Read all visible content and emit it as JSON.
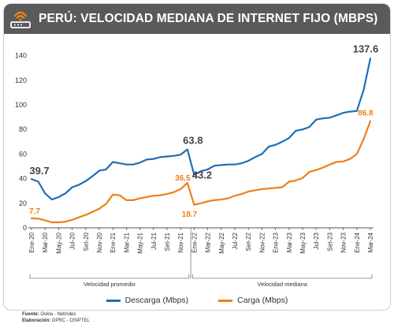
{
  "header": {
    "title": "PERÚ: VELOCIDAD MEDIANA DE INTERNET FIJO (MBPS)",
    "icon": "wifi-router-icon",
    "background": "#5a5a5a",
    "icon_color": "#f07f17"
  },
  "legend": [
    {
      "label": "Descarga (Mbps)",
      "color": "#1f6db5"
    },
    {
      "label": "Carga (Mbps)",
      "color": "#f07f17"
    }
  ],
  "footer": {
    "source_label": "Fuente:",
    "source": "Ookla - NetIndex",
    "prepared_label": "Elaboración:",
    "prepared": "DPRC - OSIPTEL"
  },
  "chart_data": {
    "type": "line",
    "title": "PERÚ: VELOCIDAD MEDIANA DE INTERNET FIJO (MBPS)",
    "ylim": [
      0,
      150
    ],
    "yticks": [
      0,
      20,
      40,
      60,
      80,
      100,
      120,
      140
    ],
    "grid": false,
    "legend_position": "bottom",
    "x": [
      "Ene-20",
      "Feb-20",
      "Mar-20",
      "Abr-20",
      "May-20",
      "Jun-20",
      "Jul-20",
      "Ago-20",
      "Set-20",
      "Oct-20",
      "Nov-20",
      "Dic-20",
      "Ene-21",
      "Feb-21",
      "Mar-21",
      "Abr-21",
      "May-21",
      "Jun-21",
      "Jul-21",
      "Ago-21",
      "Set-21",
      "Oct-21",
      "Nov-21",
      "Dic-21",
      "Ene-22",
      "Feb-22",
      "Mar-22",
      "Abr-22",
      "May-22",
      "Jun-22",
      "Jul-22",
      "Ago-22",
      "Set-22",
      "Oct-22",
      "Nov-22",
      "Dic-22",
      "Ene-23",
      "Feb-23",
      "Mar-23",
      "Abr-23",
      "May-23",
      "Jun-23",
      "Jul-23",
      "Ago-23",
      "Set-23",
      "Oct-23",
      "Nov-23",
      "Dic-23",
      "Ene-24",
      "Feb-24",
      "Mar-24"
    ],
    "xtick_labels": [
      "Ene-20",
      "Mar-20",
      "May-20",
      "Jul-20",
      "Set-20",
      "Nov-20",
      "Ene-21",
      "Mar-21",
      "May-21",
      "Jul-21",
      "Set-21",
      "Nov-21",
      "Ene-22",
      "Mar-22",
      "May-22",
      "Jul-22",
      "Set-22",
      "Nov-22",
      "Ene-23",
      "Mar-23",
      "May-23",
      "Jul-23",
      "Set-23",
      "Nov-23",
      "Ene-24",
      "Mar-24"
    ],
    "series": [
      {
        "name": "Descarga (Mbps)",
        "color": "#1f6db5",
        "values": [
          39.7,
          37.5,
          28,
          23,
          25,
          28,
          33,
          35,
          38,
          42,
          46.5,
          47.5,
          53.5,
          52.5,
          51.5,
          51.5,
          53,
          55.5,
          56,
          57.5,
          58,
          58.5,
          59.5,
          63.8,
          43.2,
          46,
          47.5,
          50.5,
          51,
          51.5,
          51.5,
          52.5,
          54.5,
          57.5,
          60,
          66,
          67.5,
          70,
          73,
          79,
          80,
          82,
          88,
          89,
          89.5,
          91.5,
          93.5,
          94.5,
          95,
          112,
          137.6
        ]
      },
      {
        "name": "Carga (Mbps)",
        "color": "#f07f17",
        "values": [
          7.7,
          7.5,
          6,
          4.5,
          4.5,
          5,
          6.5,
          8.5,
          10.5,
          13,
          15.5,
          19.5,
          27,
          26.5,
          22.5,
          22.5,
          24,
          25,
          26,
          26.5,
          27.5,
          29,
          31.5,
          36.5,
          18.7,
          20,
          21.5,
          22.5,
          23,
          24,
          26,
          27.5,
          29.5,
          30.5,
          31.5,
          32,
          32.5,
          33,
          37.5,
          38.5,
          40.5,
          45.5,
          47,
          49,
          51.5,
          53.5,
          54,
          56,
          60,
          72,
          86.8
        ]
      }
    ],
    "annotations": [
      {
        "text": "39.7",
        "series": 0,
        "index": 0,
        "color": "#444444"
      },
      {
        "text": "63.8",
        "series": 0,
        "index": 23,
        "color": "#444444"
      },
      {
        "text": "43.2",
        "series": 0,
        "index": 24,
        "color": "#444444"
      },
      {
        "text": "137.6",
        "series": 0,
        "index": 50,
        "color": "#444444"
      },
      {
        "text": "7.7",
        "series": 1,
        "index": 0,
        "color": "#f07f17"
      },
      {
        "text": "36.5",
        "series": 1,
        "index": 23,
        "color": "#f07f17"
      },
      {
        "text": "18.7",
        "series": 1,
        "index": 24,
        "color": "#f07f17"
      },
      {
        "text": "86.8",
        "series": 1,
        "index": 50,
        "color": "#f07f17"
      }
    ],
    "periods": [
      {
        "label": "Velocidad promedio",
        "from": 0,
        "to": 23
      },
      {
        "label": "Velocidad mediana",
        "from": 24,
        "to": 50
      }
    ]
  }
}
